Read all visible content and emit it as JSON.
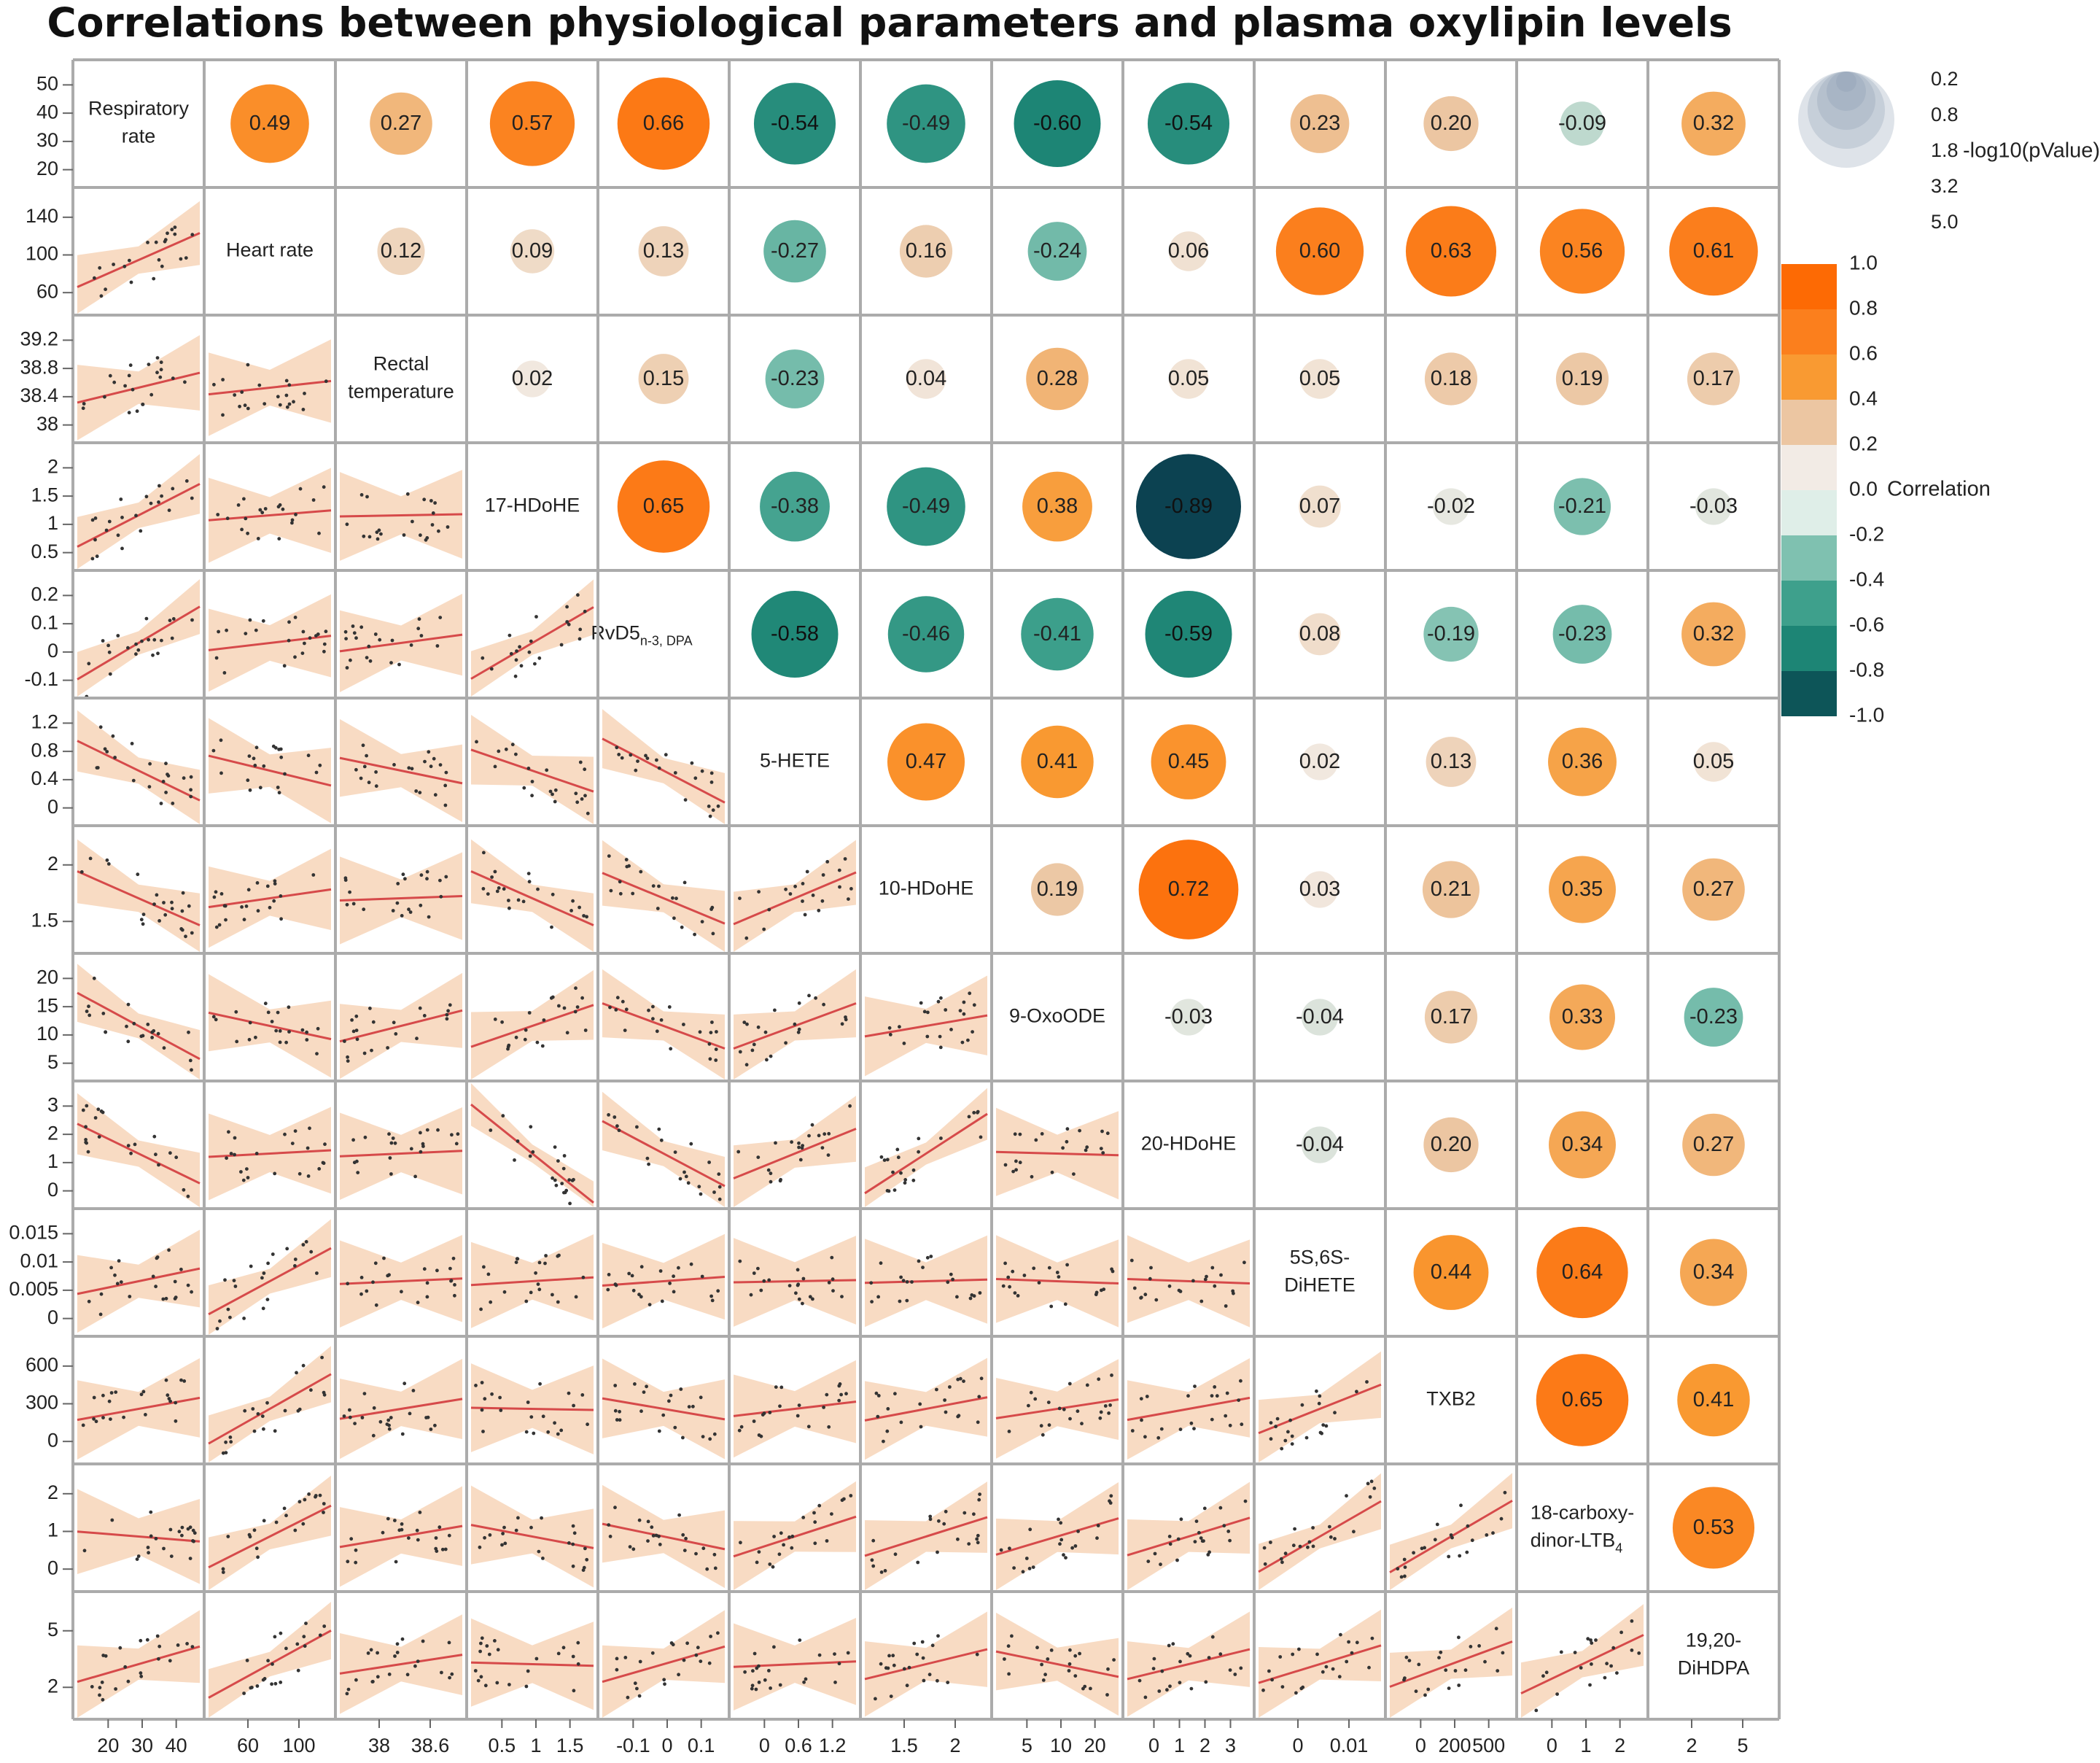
{
  "chart_data": {
    "type": "scatter-matrix-correlogram",
    "title": "Correlations between physiological parameters and plasma oxylipin levels",
    "variables": [
      {
        "name": "Respiratory rate",
        "lines": [
          "Respiratory",
          "rate"
        ],
        "ticks": [
          "50",
          "40",
          "30",
          "20"
        ],
        "xticks": [
          "20",
          "30",
          "40"
        ],
        "range": [
          15,
          52
        ]
      },
      {
        "name": "Heart rate",
        "lines": [
          "Heart rate"
        ],
        "ticks": [
          "140",
          "100",
          "60"
        ],
        "xticks": [
          "60",
          "100"
        ],
        "range": [
          45,
          155
        ]
      },
      {
        "name": "Rectal temperature",
        "lines": [
          "Rectal",
          "temperature"
        ],
        "ticks": [
          "39.2",
          "38.8",
          "38.4",
          "38"
        ],
        "xticks": [
          "38",
          "38.6"
        ],
        "range": [
          38.0,
          39.4
        ]
      },
      {
        "name": "17-HDoHE",
        "lines": [
          "17-HDoHE"
        ],
        "ticks": [
          "2",
          "1.5",
          "1",
          "0.5"
        ],
        "xticks": [
          "0.5",
          "1",
          "1.5"
        ],
        "range": [
          0.0,
          2.1
        ]
      },
      {
        "name": "RvD5 n-3, DPA",
        "lines": [
          "RvD5"
        ],
        "sub": "n-3, DPA",
        "ticks": [
          "0.2",
          "0.1",
          "0",
          "-0.1"
        ],
        "xticks": [
          "-0.1",
          "0",
          "0.1"
        ],
        "range": [
          -0.15,
          0.24
        ]
      },
      {
        "name": "5-HETE",
        "lines": [
          "5-HETE"
        ],
        "ticks": [
          "1.2",
          "0.8",
          "0.4",
          "0"
        ],
        "xticks": [
          "0",
          "0.6",
          "1.2"
        ],
        "range": [
          0.0,
          1.35
        ]
      },
      {
        "name": "10-HDoHE",
        "lines": [
          "10-HDoHE"
        ],
        "ticks": [
          "2",
          "1.5"
        ],
        "xticks": [
          "1.5",
          "2"
        ],
        "range": [
          1.1,
          2.55
        ]
      },
      {
        "name": "9-OxoODE",
        "lines": [
          "9-OxoODE"
        ],
        "ticks": [
          "20",
          "15",
          "10",
          "5"
        ],
        "xticks": [
          "5",
          "10",
          "20"
        ],
        "range": [
          1.0,
          22.0
        ]
      },
      {
        "name": "20-HDoHE",
        "lines": [
          "20-HDoHE"
        ],
        "ticks": [
          "3",
          "2",
          "1",
          "0"
        ],
        "xticks": [
          "0",
          "1",
          "2",
          "3"
        ],
        "range": [
          0.0,
          3.5
        ]
      },
      {
        "name": "5S,6S-DiHETE",
        "lines": [
          "5S,6S-",
          "DiHETE"
        ],
        "ticks": [
          "0.015",
          "0.01",
          "0.005",
          "0"
        ],
        "xticks": [
          "0",
          "0.01"
        ],
        "range": [
          0.0,
          0.018
        ]
      },
      {
        "name": "TXB2",
        "lines": [
          "TXB2"
        ],
        "ticks": [
          "600",
          "300",
          "0"
        ],
        "xticks": [
          "0",
          "200",
          "500"
        ],
        "range": [
          -50,
          700
        ]
      },
      {
        "name": "18-carboxy-dinor-LTB4",
        "lines": [
          "18-carboxy-",
          "dinor-LTB"
        ],
        "sub": "4",
        "ticks": [
          "2",
          "1",
          "0"
        ],
        "xticks": [
          "0",
          "1",
          "2"
        ],
        "range": [
          -0.1,
          2.6
        ]
      },
      {
        "name": "19,20-DiHDPA",
        "lines": [
          "19,20-",
          "DiHDPA"
        ],
        "ticks": [
          "5",
          "2"
        ],
        "xticks": [
          "2",
          "5"
        ],
        "range": [
          0.0,
          7.5
        ]
      }
    ],
    "correlations": [
      {
        "row": 0,
        "col": 1,
        "r": 0.49,
        "label": "0.49",
        "nlog10p": 2.2
      },
      {
        "row": 0,
        "col": 2,
        "r": 0.27,
        "label": "0.27",
        "nlog10p": 1.0
      },
      {
        "row": 0,
        "col": 3,
        "r": 0.57,
        "label": "0.57",
        "nlog10p": 2.8
      },
      {
        "row": 0,
        "col": 4,
        "r": 0.66,
        "label": "0.66",
        "nlog10p": 3.6
      },
      {
        "row": 0,
        "col": 5,
        "r": -0.54,
        "label": "-0.54",
        "nlog10p": 2.5
      },
      {
        "row": 0,
        "col": 6,
        "r": -0.49,
        "label": "-0.49",
        "nlog10p": 2.2
      },
      {
        "row": 0,
        "col": 7,
        "r": -0.6,
        "label": "-0.60",
        "nlog10p": 3.0
      },
      {
        "row": 0,
        "col": 8,
        "r": -0.54,
        "label": "-0.54",
        "nlog10p": 2.5
      },
      {
        "row": 0,
        "col": 9,
        "r": 0.23,
        "label": "0.23",
        "nlog10p": 0.8
      },
      {
        "row": 0,
        "col": 10,
        "r": 0.2,
        "label": "0.20",
        "nlog10p": 0.6
      },
      {
        "row": 0,
        "col": 11,
        "r": -0.09,
        "label": "-0.09",
        "nlog10p": 0.2
      },
      {
        "row": 0,
        "col": 12,
        "r": 0.32,
        "label": "0.32",
        "nlog10p": 1.1
      },
      {
        "row": 1,
        "col": 2,
        "r": 0.12,
        "label": "0.12",
        "nlog10p": 0.3
      },
      {
        "row": 1,
        "col": 3,
        "r": 0.09,
        "label": "0.09",
        "nlog10p": 0.2
      },
      {
        "row": 1,
        "col": 4,
        "r": 0.13,
        "label": "0.13",
        "nlog10p": 0.4
      },
      {
        "row": 1,
        "col": 5,
        "r": -0.27,
        "label": "-0.27",
        "nlog10p": 1.0
      },
      {
        "row": 1,
        "col": 6,
        "r": 0.16,
        "label": "0.16",
        "nlog10p": 0.5
      },
      {
        "row": 1,
        "col": 7,
        "r": -0.24,
        "label": "-0.24",
        "nlog10p": 0.8
      },
      {
        "row": 1,
        "col": 8,
        "r": 0.06,
        "label": "0.06",
        "nlog10p": 0.1
      },
      {
        "row": 1,
        "col": 9,
        "r": 0.6,
        "label": "0.60",
        "nlog10p": 3.1
      },
      {
        "row": 1,
        "col": 10,
        "r": 0.63,
        "label": "0.63",
        "nlog10p": 3.4
      },
      {
        "row": 1,
        "col": 11,
        "r": 0.56,
        "label": "0.56",
        "nlog10p": 2.8
      },
      {
        "row": 1,
        "col": 12,
        "r": 0.61,
        "label": "0.61",
        "nlog10p": 3.2
      },
      {
        "row": 2,
        "col": 3,
        "r": 0.02,
        "label": "0.02",
        "nlog10p": 0.05
      },
      {
        "row": 2,
        "col": 4,
        "r": 0.15,
        "label": "0.15",
        "nlog10p": 0.4
      },
      {
        "row": 2,
        "col": 5,
        "r": -0.23,
        "label": "-0.23",
        "nlog10p": 0.8
      },
      {
        "row": 2,
        "col": 6,
        "r": 0.04,
        "label": "0.04",
        "nlog10p": 0.1
      },
      {
        "row": 2,
        "col": 7,
        "r": 0.28,
        "label": "0.28",
        "nlog10p": 1.0
      },
      {
        "row": 2,
        "col": 8,
        "r": 0.05,
        "label": "0.05",
        "nlog10p": 0.1
      },
      {
        "row": 2,
        "col": 9,
        "r": 0.05,
        "label": "0.05",
        "nlog10p": 0.1
      },
      {
        "row": 2,
        "col": 10,
        "r": 0.18,
        "label": "0.18",
        "nlog10p": 0.5
      },
      {
        "row": 2,
        "col": 11,
        "r": 0.19,
        "label": "0.19",
        "nlog10p": 0.5
      },
      {
        "row": 2,
        "col": 12,
        "r": 0.17,
        "label": "0.17",
        "nlog10p": 0.5
      },
      {
        "row": 3,
        "col": 4,
        "r": 0.65,
        "label": "0.65",
        "nlog10p": 3.6
      },
      {
        "row": 3,
        "col": 5,
        "r": -0.38,
        "label": "-0.38",
        "nlog10p": 1.5
      },
      {
        "row": 3,
        "col": 6,
        "r": -0.49,
        "label": "-0.49",
        "nlog10p": 2.2
      },
      {
        "row": 3,
        "col": 7,
        "r": 0.38,
        "label": "0.38",
        "nlog10p": 1.5
      },
      {
        "row": 3,
        "col": 8,
        "r": -0.89,
        "label": "-0.89",
        "nlog10p": 8.0
      },
      {
        "row": 3,
        "col": 9,
        "r": 0.07,
        "label": "0.07",
        "nlog10p": 0.15
      },
      {
        "row": 3,
        "col": 10,
        "r": -0.02,
        "label": "-0.02",
        "nlog10p": 0.05
      },
      {
        "row": 3,
        "col": 11,
        "r": -0.21,
        "label": "-0.21",
        "nlog10p": 0.7
      },
      {
        "row": 3,
        "col": 12,
        "r": -0.03,
        "label": "-0.03",
        "nlog10p": 0.05
      },
      {
        "row": 4,
        "col": 5,
        "r": -0.58,
        "label": "-0.58",
        "nlog10p": 3.0
      },
      {
        "row": 4,
        "col": 6,
        "r": -0.46,
        "label": "-0.46",
        "nlog10p": 2.0
      },
      {
        "row": 4,
        "col": 7,
        "r": -0.41,
        "label": "-0.41",
        "nlog10p": 1.7
      },
      {
        "row": 4,
        "col": 8,
        "r": -0.59,
        "label": "-0.59",
        "nlog10p": 3.0
      },
      {
        "row": 4,
        "col": 9,
        "r": 0.08,
        "label": "0.08",
        "nlog10p": 0.15
      },
      {
        "row": 4,
        "col": 10,
        "r": -0.19,
        "label": "-0.19",
        "nlog10p": 0.6
      },
      {
        "row": 4,
        "col": 11,
        "r": -0.23,
        "label": "-0.23",
        "nlog10p": 0.8
      },
      {
        "row": 4,
        "col": 12,
        "r": 0.32,
        "label": "0.32",
        "nlog10p": 1.1
      },
      {
        "row": 5,
        "col": 6,
        "r": 0.47,
        "label": "0.47",
        "nlog10p": 2.1
      },
      {
        "row": 5,
        "col": 7,
        "r": 0.41,
        "label": "0.41",
        "nlog10p": 1.7
      },
      {
        "row": 5,
        "col": 8,
        "r": 0.45,
        "label": "0.45",
        "nlog10p": 1.9
      },
      {
        "row": 5,
        "col": 9,
        "r": 0.02,
        "label": "0.02",
        "nlog10p": 0.05
      },
      {
        "row": 5,
        "col": 10,
        "r": 0.13,
        "label": "0.13",
        "nlog10p": 0.4
      },
      {
        "row": 5,
        "col": 11,
        "r": 0.36,
        "label": "0.36",
        "nlog10p": 1.4
      },
      {
        "row": 5,
        "col": 12,
        "r": 0.05,
        "label": "0.05",
        "nlog10p": 0.1
      },
      {
        "row": 6,
        "col": 7,
        "r": 0.19,
        "label": "0.19",
        "nlog10p": 0.5
      },
      {
        "row": 6,
        "col": 8,
        "r": 0.72,
        "label": "0.72",
        "nlog10p": 4.5
      },
      {
        "row": 6,
        "col": 9,
        "r": 0.03,
        "label": "0.03",
        "nlog10p": 0.05
      },
      {
        "row": 6,
        "col": 10,
        "r": 0.21,
        "label": "0.21",
        "nlog10p": 0.7
      },
      {
        "row": 6,
        "col": 11,
        "r": 0.35,
        "label": "0.35",
        "nlog10p": 1.3
      },
      {
        "row": 6,
        "col": 12,
        "r": 0.27,
        "label": "0.27",
        "nlog10p": 1.0
      },
      {
        "row": 7,
        "col": 8,
        "r": -0.03,
        "label": "-0.03",
        "nlog10p": 0.05
      },
      {
        "row": 7,
        "col": 9,
        "r": -0.04,
        "label": "-0.04",
        "nlog10p": 0.05
      },
      {
        "row": 7,
        "col": 10,
        "r": 0.17,
        "label": "0.17",
        "nlog10p": 0.5
      },
      {
        "row": 7,
        "col": 11,
        "r": 0.33,
        "label": "0.33",
        "nlog10p": 1.2
      },
      {
        "row": 7,
        "col": 12,
        "r": -0.23,
        "label": "-0.23",
        "nlog10p": 0.8
      },
      {
        "row": 8,
        "col": 9,
        "r": -0.04,
        "label": "-0.04",
        "nlog10p": 0.05
      },
      {
        "row": 8,
        "col": 10,
        "r": 0.2,
        "label": "0.20",
        "nlog10p": 0.6
      },
      {
        "row": 8,
        "col": 11,
        "r": 0.34,
        "label": "0.34",
        "nlog10p": 1.3
      },
      {
        "row": 8,
        "col": 12,
        "r": 0.27,
        "label": "0.27",
        "nlog10p": 1.0
      },
      {
        "row": 9,
        "col": 10,
        "r": 0.44,
        "label": "0.44",
        "nlog10p": 1.9
      },
      {
        "row": 9,
        "col": 11,
        "r": 0.64,
        "label": "0.64",
        "nlog10p": 3.5
      },
      {
        "row": 9,
        "col": 12,
        "r": 0.34,
        "label": "0.34",
        "nlog10p": 1.3
      },
      {
        "row": 10,
        "col": 11,
        "r": 0.65,
        "label": "0.65",
        "nlog10p": 3.6
      },
      {
        "row": 10,
        "col": 12,
        "r": 0.41,
        "label": "0.41",
        "nlog10p": 1.7
      },
      {
        "row": 11,
        "col": 12,
        "r": 0.53,
        "label": "0.53",
        "nlog10p": 2.5
      }
    ],
    "size_legend": {
      "title": "-log10(pValue)",
      "values": [
        "0.2",
        "0.8",
        "1.8",
        "3.2",
        "5.0"
      ],
      "numeric": [
        0.2,
        0.8,
        1.8,
        3.2,
        5.0
      ]
    },
    "color_legend": {
      "title": "Correlation",
      "ticks": [
        "1.0",
        "0.8",
        "0.6",
        "0.4",
        "0.2",
        "0.0",
        "-0.2",
        "-0.4",
        "-0.6",
        "-0.8",
        "-1.0"
      ],
      "colors": [
        "#fd6a04",
        "#fb7f1d",
        "#f99a32",
        "#ecc6a2",
        "#f2ebe5",
        "#dfeee8",
        "#7fc1b0",
        "#3ea08c",
        "#1d8575",
        "#0d5558",
        "#0b2a48"
      ]
    },
    "colors": {
      "grid": "#ababab",
      "regression_line": "#d64a4a",
      "confidence_band": "#f7d7bd",
      "points": "#333333",
      "size_legend_bubble": "#8a9ab0"
    }
  }
}
